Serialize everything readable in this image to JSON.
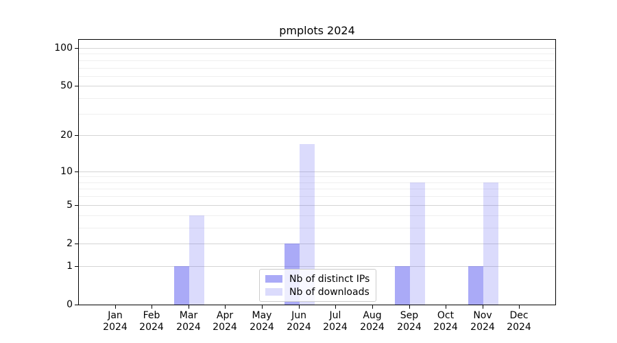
{
  "chart_data": {
    "type": "bar",
    "title": "pmplots 2024",
    "categories": [
      "Jan 2024",
      "Feb 2024",
      "Mar 2024",
      "Apr 2024",
      "May 2024",
      "Jun 2024",
      "Jul 2024",
      "Aug 2024",
      "Sep 2024",
      "Oct 2024",
      "Nov 2024",
      "Dec 2024"
    ],
    "series": [
      {
        "name": "Nb of distinct IPs",
        "color": "rgba(85,85,240,0.50)",
        "values": [
          0,
          0,
          1,
          0,
          0,
          2,
          0,
          0,
          1,
          0,
          1,
          0
        ]
      },
      {
        "name": "Nb of downloads",
        "color": "rgba(85,85,240,0.21)",
        "values": [
          0,
          0,
          4,
          0,
          0,
          17,
          0,
          0,
          8,
          0,
          8,
          0
        ]
      }
    ],
    "y_axis": {
      "scale": "log10(1+x)",
      "major_ticks": [
        0,
        1,
        2,
        5,
        10,
        20,
        50,
        100
      ],
      "minor_gridlines": [
        3,
        4,
        6,
        7,
        8,
        9,
        30,
        40,
        60,
        70,
        80,
        90
      ],
      "axis_max": 116
    },
    "x_axis": {
      "tick_label_lines": 2
    },
    "legend": {
      "location": "lower center"
    },
    "grid": {
      "major_color": "#d4d4d4",
      "minor_color": "#efefef"
    },
    "colors": {
      "background": "#ffffff",
      "axis": "#000000"
    }
  }
}
